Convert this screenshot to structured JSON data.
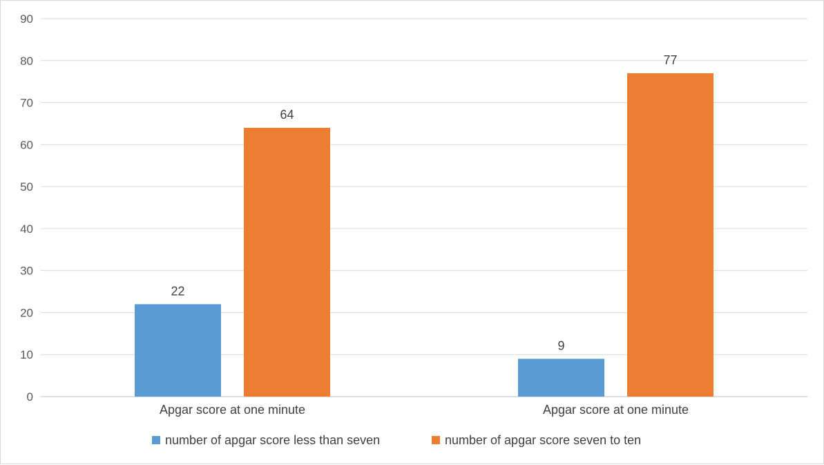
{
  "chart_data": {
    "type": "bar",
    "categories": [
      "Apgar score at one minute",
      "Apgar score at one minute"
    ],
    "series": [
      {
        "name": "number of apgar score less than seven",
        "values": [
          22,
          9
        ],
        "color": "#5b9bd5"
      },
      {
        "name": "number of apgar score seven to ten",
        "values": [
          64,
          77
        ],
        "color": "#ed7d31"
      }
    ],
    "ylim": [
      0,
      90
    ],
    "yticks": [
      0,
      10,
      20,
      30,
      40,
      50,
      60,
      70,
      80,
      90
    ],
    "grid": true,
    "legend_position": "bottom",
    "data_labels": true
  }
}
